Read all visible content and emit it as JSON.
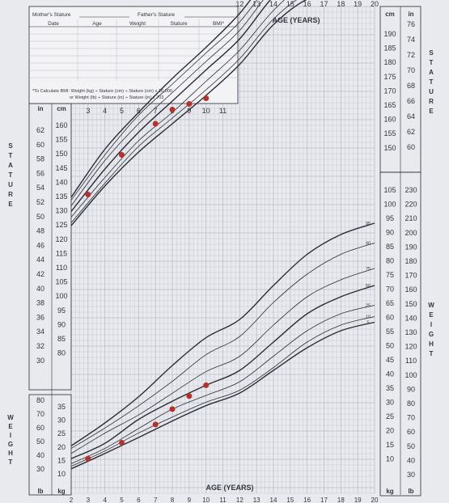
{
  "chart_data": {
    "type": "line",
    "header": {
      "mothers_stature": "Mother's Stature",
      "fathers_stature": "Father's Stature",
      "columns": [
        "Date",
        "Age",
        "Weight",
        "Stature",
        "BMI*"
      ],
      "bmi_note_1": "*To Calculate BMI: Weight (kg) ÷ Stature (cm) ÷ Stature (cm) x 10,000",
      "bmi_note_2": "or Weight (lb) ÷ Stature (in) ÷ Stature (in) x 703"
    },
    "title_top": "AGE (YEARS)",
    "title_bottom": "AGE (YEARS)",
    "side_label_stature": "STATURE",
    "side_label_weight": "WEIGHT",
    "unit_labels": {
      "in": "in",
      "cm": "cm",
      "kg": "kg",
      "lb": "lb"
    },
    "x_ticks_top": [
      "12",
      "13",
      "14",
      "15",
      "16",
      "17",
      "18",
      "19",
      "20"
    ],
    "x_ticks_inner": [
      "3",
      "4",
      "5",
      "6",
      "7",
      "8",
      "9",
      "10",
      "11"
    ],
    "x_ticks_bottom": [
      "2",
      "3",
      "4",
      "5",
      "6",
      "7",
      "8",
      "9",
      "10",
      "11",
      "12",
      "13",
      "14",
      "15",
      "16",
      "17",
      "18",
      "19",
      "20"
    ],
    "xlim": [
      2,
      20
    ],
    "stature_cm_ticks": [
      "160",
      "155",
      "150",
      "145",
      "140",
      "135",
      "130",
      "125",
      "120",
      "115",
      "110",
      "105",
      "100",
      "95",
      "90",
      "85",
      "80"
    ],
    "stature_in_ticks": [
      "62",
      "60",
      "58",
      "56",
      "54",
      "52",
      "50",
      "48",
      "46",
      "44",
      "42",
      "40",
      "38",
      "36",
      "34",
      "32",
      "30"
    ],
    "stature_right_cm_ticks": [
      "190",
      "185",
      "180",
      "175",
      "170",
      "165",
      "160",
      "155",
      "150"
    ],
    "stature_right_in_ticks": [
      "76",
      "74",
      "72",
      "70",
      "68",
      "66",
      "64",
      "62",
      "60"
    ],
    "weight_left_kg_ticks": [
      "35",
      "30",
      "25",
      "20",
      "15",
      "10"
    ],
    "weight_left_lb_ticks": [
      "80",
      "70",
      "60",
      "50",
      "40",
      "30"
    ],
    "weight_right_kg_ticks": [
      "105",
      "100",
      "95",
      "90",
      "85",
      "80",
      "75",
      "70",
      "65",
      "60",
      "55",
      "50",
      "45",
      "40",
      "35",
      "30",
      "25",
      "20",
      "15",
      "10"
    ],
    "weight_right_lb_ticks": [
      "230",
      "220",
      "210",
      "200",
      "190",
      "180",
      "170",
      "160",
      "150",
      "140",
      "130",
      "120",
      "110",
      "100",
      "90",
      "80",
      "70",
      "60",
      "50",
      "40",
      "30"
    ],
    "percentile_labels": [
      "95",
      "90",
      "75",
      "50",
      "25",
      "10",
      "5"
    ],
    "stature_percentiles": [
      {
        "name": "95",
        "x": [
          2,
          4,
          6,
          8,
          10,
          12,
          14,
          16,
          18,
          20
        ],
        "y": [
          92,
          109,
          122,
          134,
          145,
          157,
          172,
          181,
          184,
          185
        ]
      },
      {
        "name": "90",
        "x": [
          2,
          4,
          6,
          8,
          10,
          12,
          14,
          16,
          18,
          20
        ],
        "y": [
          91,
          107,
          121,
          132,
          143,
          154,
          169,
          179,
          182,
          183
        ]
      },
      {
        "name": "75",
        "x": [
          2,
          4,
          6,
          8,
          10,
          12,
          14,
          16,
          18,
          20
        ],
        "y": [
          89,
          105,
          118,
          129,
          140,
          151,
          166,
          175,
          178,
          179
        ]
      },
      {
        "name": "50",
        "x": [
          2,
          4,
          6,
          8,
          10,
          12,
          14,
          16,
          18,
          20
        ],
        "y": [
          87,
          102,
          115,
          126,
          137,
          148,
          163,
          173,
          176,
          177
        ]
      },
      {
        "name": "25",
        "x": [
          2,
          4,
          6,
          8,
          10,
          12,
          14,
          16,
          18,
          20
        ],
        "y": [
          85,
          99,
          112,
          122,
          133,
          144,
          158,
          168,
          171,
          172
        ]
      },
      {
        "name": "10",
        "x": [
          2,
          4,
          6,
          8,
          10,
          12,
          14,
          16,
          18,
          20
        ],
        "y": [
          83,
          97,
          110,
          120,
          130,
          141,
          155,
          164,
          167,
          168
        ]
      },
      {
        "name": "5",
        "x": [
          2,
          4,
          6,
          8,
          10,
          12,
          14,
          16,
          18,
          20
        ],
        "y": [
          82,
          96,
          108,
          118,
          128,
          139,
          153,
          162,
          165,
          166
        ]
      }
    ],
    "weight_percentiles": [
      {
        "name": "95",
        "x": [
          2,
          4,
          6,
          8,
          10,
          12,
          14,
          16,
          18,
          20
        ],
        "y": [
          15.5,
          20,
          26,
          35,
          46,
          58,
          70,
          81,
          88,
          92
        ]
      },
      {
        "name": "90",
        "x": [
          2,
          4,
          6,
          8,
          10,
          12,
          14,
          16,
          18,
          20
        ],
        "y": [
          15,
          19,
          24,
          31,
          41,
          52,
          64,
          74,
          81,
          85
        ]
      },
      {
        "name": "75",
        "x": [
          2,
          4,
          6,
          8,
          10,
          12,
          14,
          16,
          18,
          20
        ],
        "y": [
          14,
          18,
          22,
          28,
          36,
          45,
          56,
          66,
          72,
          76
        ]
      },
      {
        "name": "50",
        "x": [
          2,
          4,
          6,
          8,
          10,
          12,
          14,
          16,
          18,
          20
        ],
        "y": [
          13,
          16,
          21,
          26,
          32,
          40,
          50,
          60,
          66,
          70
        ]
      },
      {
        "name": "25",
        "x": [
          2,
          4,
          6,
          8,
          10,
          12,
          14,
          16,
          18,
          20
        ],
        "y": [
          12,
          15,
          19,
          24,
          29,
          36,
          45,
          54,
          60,
          63
        ]
      },
      {
        "name": "10",
        "x": [
          2,
          4,
          6,
          8,
          10,
          12,
          14,
          16,
          18,
          20
        ],
        "y": [
          11.5,
          14.5,
          18,
          22,
          27,
          33,
          41,
          50,
          56,
          59
        ]
      },
      {
        "name": "5",
        "x": [
          2,
          4,
          6,
          8,
          10,
          12,
          14,
          16,
          18,
          20
        ],
        "y": [
          11,
          14,
          17,
          21,
          26,
          32,
          40,
          48,
          54,
          57
        ]
      }
    ],
    "patient_stature": {
      "x": [
        3,
        5,
        7,
        8,
        9,
        10
      ],
      "y": [
        93,
        107,
        118,
        123,
        125,
        127
      ]
    },
    "patient_weight": {
      "x": [
        3,
        5,
        7,
        8,
        9,
        10
      ],
      "y": [
        13,
        16,
        20,
        24,
        28,
        32
      ]
    },
    "colors": {
      "background": "#e9eaee",
      "grid": "#b9bcc6",
      "curve": "#2b2d36",
      "dot": "#b8302a",
      "text": "#33353d"
    }
  }
}
